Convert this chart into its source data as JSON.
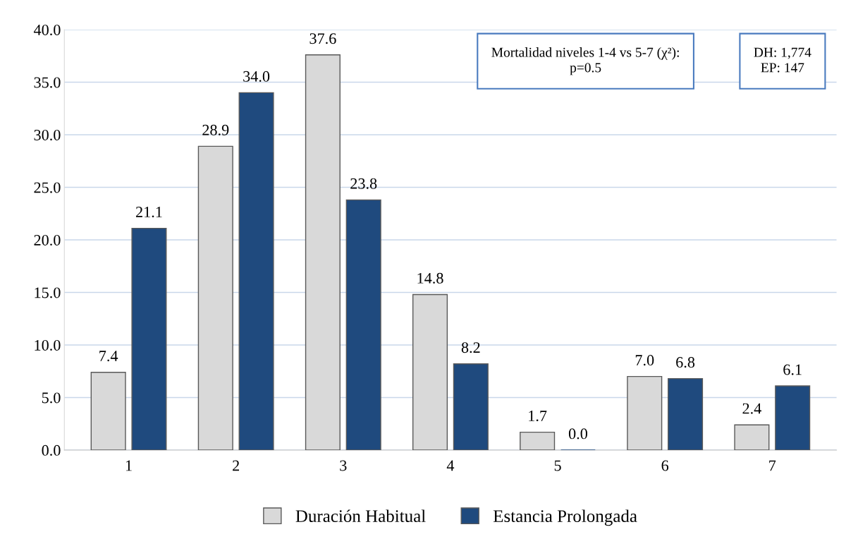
{
  "chart_data": {
    "type": "bar",
    "categories": [
      "1",
      "2",
      "3",
      "4",
      "5",
      "6",
      "7"
    ],
    "series": [
      {
        "name": "Duración Habitual",
        "color": "#d9d9d9",
        "values": [
          7.4,
          28.9,
          37.6,
          14.8,
          1.7,
          7.0,
          2.4
        ],
        "value_labels": [
          "7.4",
          "28.9",
          "37.6",
          "14.8",
          "1.7",
          "7.0",
          "2.4"
        ]
      },
      {
        "name": "Estancia Prolongada",
        "color": "#1f4a7e",
        "values": [
          21.1,
          34.0,
          23.8,
          8.2,
          0.0,
          6.8,
          6.1
        ],
        "value_labels": [
          "21.1",
          "34.0",
          "23.8",
          "8.2",
          "0.0",
          "6.8",
          "6.1"
        ]
      }
    ],
    "ylim": [
      0,
      40
    ],
    "yticks": [
      {
        "value": 0,
        "label": "0.0"
      },
      {
        "value": 5,
        "label": "5.0"
      },
      {
        "value": 10,
        "label": "10.0"
      },
      {
        "value": 15,
        "label": "15.0"
      },
      {
        "value": 20,
        "label": "20.0"
      },
      {
        "value": 25,
        "label": "25.0"
      },
      {
        "value": 30,
        "label": "30.0"
      },
      {
        "value": 35,
        "label": "35.0"
      },
      {
        "value": 40,
        "label": "40.0"
      }
    ],
    "grid": "y",
    "legend": "bottom",
    "annotations": [
      "Mortalidad niveles 1-4 vs 5-7 (χ²):\np=0.5",
      "DH: 1,774\nEP: 147"
    ]
  }
}
